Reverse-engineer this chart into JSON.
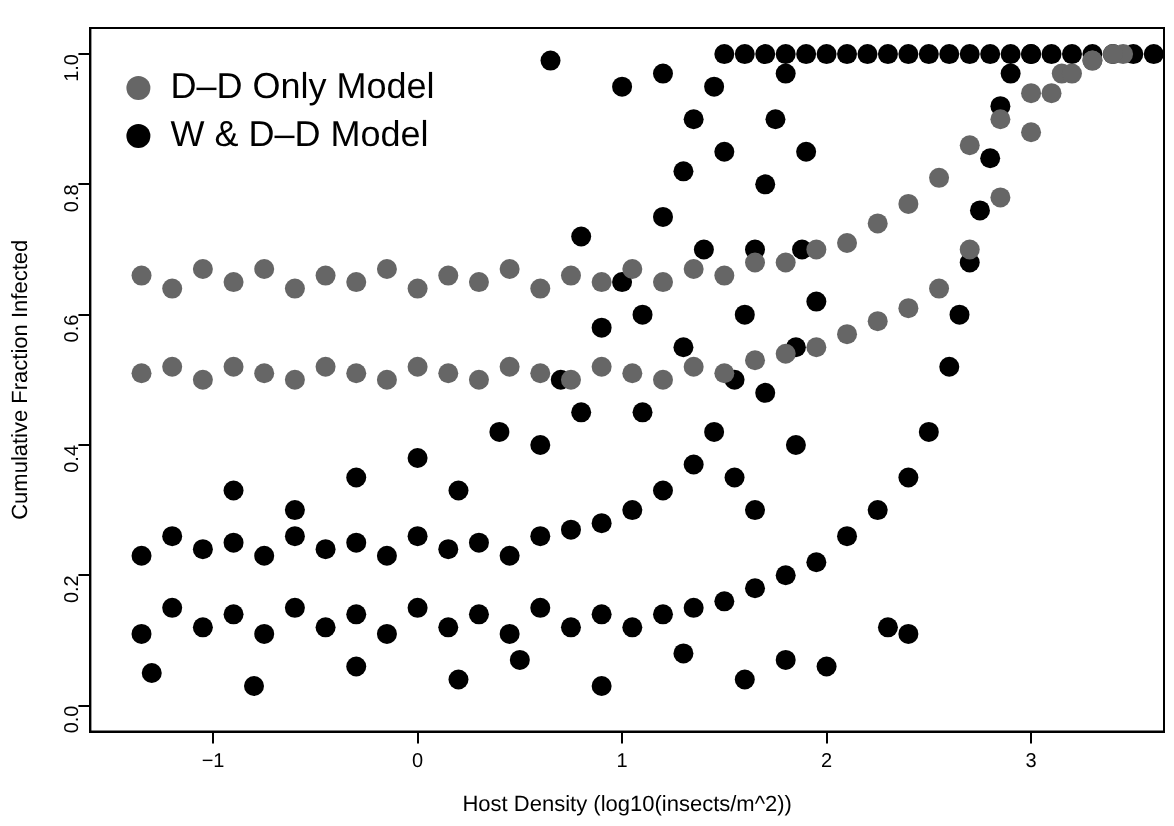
{
  "chart_data": {
    "type": "scatter",
    "xlabel": "Host Density (log10(insects/m^2))",
    "ylabel": "Cumulative Fraction Infected",
    "xlim": [
      -1.6,
      3.65
    ],
    "xticks": [
      -1,
      0,
      1,
      2,
      3
    ],
    "ylim": [
      -0.04,
      1.04
    ],
    "yticks": [
      {
        "value": 0,
        "label": "0.0"
      },
      {
        "value": 0.2,
        "label": "0.2"
      },
      {
        "value": 0.4,
        "label": "0.4"
      },
      {
        "value": 0.6,
        "label": "0.6"
      },
      {
        "value": 0.8,
        "label": "0.8"
      },
      {
        "value": 1,
        "label": "1.0"
      }
    ],
    "grid": false,
    "legend": "top left",
    "marker": "circle",
    "series": [
      {
        "name": "D–D Only Model",
        "color": "#666666",
        "x": [
          -1.35,
          -1.2,
          -1.05,
          -0.9,
          -0.75,
          -0.6,
          -0.45,
          -0.3,
          -0.15,
          0,
          0.15,
          0.3,
          0.45,
          0.6,
          0.75,
          0.9,
          1.05,
          1.2,
          1.35,
          1.5,
          1.65,
          1.8,
          1.95,
          2.1,
          2.25,
          2.4,
          2.55,
          2.7,
          2.85,
          3.0,
          3.15,
          3.3,
          3.45,
          -1.35,
          -1.2,
          -1.05,
          -0.9,
          -0.75,
          -0.6,
          -0.45,
          -0.3,
          -0.15,
          0,
          0.15,
          0.3,
          0.45,
          0.6,
          0.75,
          0.9,
          1.05,
          1.2,
          1.35,
          1.5,
          1.65,
          1.8,
          1.95,
          2.1,
          2.25,
          2.4,
          2.55,
          2.7,
          2.85,
          3.0,
          3.1,
          3.2,
          3.3,
          3.4
        ],
        "values": [
          0.66,
          0.64,
          0.67,
          0.65,
          0.67,
          0.64,
          0.66,
          0.65,
          0.67,
          0.64,
          0.66,
          0.65,
          0.67,
          0.64,
          0.66,
          0.65,
          0.67,
          0.65,
          0.67,
          0.66,
          0.68,
          0.68,
          0.7,
          0.71,
          0.74,
          0.77,
          0.81,
          0.86,
          0.9,
          0.94,
          0.97,
          0.99,
          1.0,
          0.51,
          0.52,
          0.5,
          0.52,
          0.51,
          0.5,
          0.52,
          0.51,
          0.5,
          0.52,
          0.51,
          0.5,
          0.52,
          0.51,
          0.5,
          0.52,
          0.51,
          0.5,
          0.52,
          0.51,
          0.53,
          0.54,
          0.55,
          0.57,
          0.59,
          0.61,
          0.64,
          0.7,
          0.78,
          0.88,
          0.94,
          0.97,
          0.99,
          1.0
        ]
      },
      {
        "name": "W & D–D Model",
        "color": "#000000",
        "x": [
          -1.35,
          -1.2,
          -1.05,
          -0.9,
          -0.75,
          -0.6,
          -0.45,
          -0.3,
          -0.15,
          0,
          0.15,
          0.3,
          0.45,
          0.6,
          0.75,
          0.9,
          1.05,
          1.2,
          1.35,
          1.5,
          1.65,
          1.8,
          1.95,
          2.1,
          2.25,
          2.4,
          2.5,
          2.6,
          2.65,
          2.7,
          2.75,
          2.8,
          2.85,
          2.9,
          3.0,
          -1.3,
          -0.8,
          -0.3,
          0.2,
          0.5,
          0.9,
          1.3,
          1.6,
          1.8,
          2.0,
          2.3,
          2.4,
          -1.35,
          -1.2,
          -1.05,
          -0.9,
          -0.75,
          -0.6,
          -0.45,
          -0.3,
          -0.15,
          0,
          0.15,
          0.3,
          0.45,
          0.6,
          0.75,
          0.9,
          1.05,
          1.2,
          1.35,
          1.45,
          1.55,
          1.6,
          1.65,
          1.7,
          1.75,
          1.8,
          1.85,
          1.85,
          1.88,
          1.9,
          1.5,
          1.6,
          1.7,
          1.8,
          1.9,
          2.0,
          2.1,
          2.2,
          2.3,
          2.4,
          2.5,
          2.6,
          2.7,
          2.8,
          2.9,
          3.0,
          3.1,
          3.2,
          3.3,
          3.4,
          3.5,
          3.6,
          -0.9,
          -0.6,
          -0.3,
          0,
          0.2,
          0.4,
          0.6,
          0.7,
          0.8,
          0.9,
          1.0,
          1.1,
          1.2,
          1.3,
          1.35,
          1.4,
          1.45,
          1.5,
          0.8,
          0.65,
          1.0,
          1.2,
          1.3,
          1.1,
          1.55,
          1.7,
          1.95,
          1.65
        ],
        "values": [
          0.11,
          0.15,
          0.12,
          0.14,
          0.11,
          0.15,
          0.12,
          0.14,
          0.11,
          0.15,
          0.12,
          0.14,
          0.11,
          0.15,
          0.12,
          0.14,
          0.12,
          0.14,
          0.15,
          0.16,
          0.18,
          0.2,
          0.22,
          0.26,
          0.3,
          0.35,
          0.42,
          0.52,
          0.6,
          0.68,
          0.76,
          0.84,
          0.92,
          0.97,
          1.0,
          0.05,
          0.03,
          0.06,
          0.04,
          0.07,
          0.03,
          0.08,
          0.04,
          0.07,
          0.06,
          0.12,
          0.11,
          0.23,
          0.26,
          0.24,
          0.25,
          0.23,
          0.26,
          0.24,
          0.25,
          0.23,
          0.26,
          0.24,
          0.25,
          0.23,
          0.26,
          0.27,
          0.28,
          0.3,
          0.33,
          0.37,
          0.42,
          0.5,
          0.6,
          0.7,
          0.8,
          0.9,
          0.97,
          0.4,
          0.55,
          0.7,
          0.85,
          1.0,
          1.0,
          1.0,
          1.0,
          1.0,
          1.0,
          1.0,
          1.0,
          1.0,
          1.0,
          1.0,
          1.0,
          1.0,
          1.0,
          1.0,
          1.0,
          1.0,
          1.0,
          1.0,
          1.0,
          1.0,
          1.0,
          0.33,
          0.3,
          0.35,
          0.38,
          0.33,
          0.42,
          0.4,
          0.5,
          0.45,
          0.58,
          0.65,
          0.6,
          0.75,
          0.82,
          0.9,
          0.7,
          0.95,
          0.85,
          0.72,
          0.99,
          0.95,
          0.97,
          0.55,
          0.45,
          0.35,
          0.48,
          0.62,
          0.3
        ]
      }
    ]
  }
}
